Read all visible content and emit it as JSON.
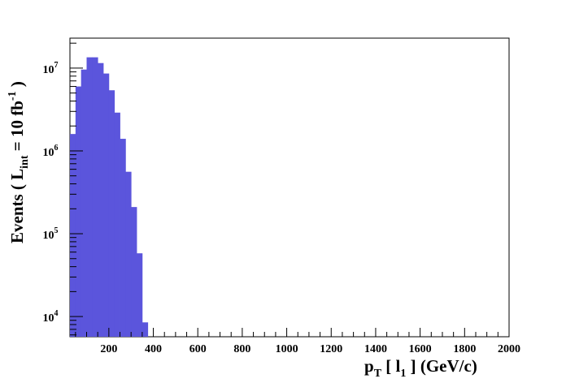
{
  "chart_data": {
    "type": "bar",
    "title": "",
    "xlabel": "p_T [ l_1 ] (GeV/c)",
    "ylabel": "Events ( L_int = 10 fb^-1 )",
    "x_unit": "GeV/c",
    "y_scale": "log",
    "xlim": [
      25,
      2000
    ],
    "ylim": [
      5700,
      23000000
    ],
    "bin_width": 25,
    "bar_color": "#5b55dc",
    "x_tick_labels": [
      "200",
      "400",
      "600",
      "800",
      "1000",
      "1200",
      "1400",
      "1600",
      "1800",
      "2000"
    ],
    "y_tick_labels": [
      {
        "base": "10",
        "exp": "4",
        "value": 10000
      },
      {
        "base": "10",
        "exp": "5",
        "value": 100000
      },
      {
        "base": "10",
        "exp": "6",
        "value": 1000000
      },
      {
        "base": "10",
        "exp": "7",
        "value": 10000000
      }
    ],
    "bins": [
      {
        "x_low": 25,
        "x_high": 50,
        "value": 1600000
      },
      {
        "x_low": 50,
        "x_high": 75,
        "value": 6000000
      },
      {
        "x_low": 75,
        "x_high": 100,
        "value": 9600000
      },
      {
        "x_low": 100,
        "x_high": 125,
        "value": 13500000
      },
      {
        "x_low": 125,
        "x_high": 150,
        "value": 13500000
      },
      {
        "x_low": 150,
        "x_high": 175,
        "value": 11500000
      },
      {
        "x_low": 175,
        "x_high": 200,
        "value": 8600000
      },
      {
        "x_low": 200,
        "x_high": 225,
        "value": 5400000
      },
      {
        "x_low": 225,
        "x_high": 250,
        "value": 2900000
      },
      {
        "x_low": 250,
        "x_high": 275,
        "value": 1400000
      },
      {
        "x_low": 275,
        "x_high": 300,
        "value": 560000
      },
      {
        "x_low": 300,
        "x_high": 325,
        "value": 210000
      },
      {
        "x_low": 325,
        "x_high": 350,
        "value": 58000
      },
      {
        "x_low": 350,
        "x_high": 375,
        "value": 8500
      }
    ]
  }
}
